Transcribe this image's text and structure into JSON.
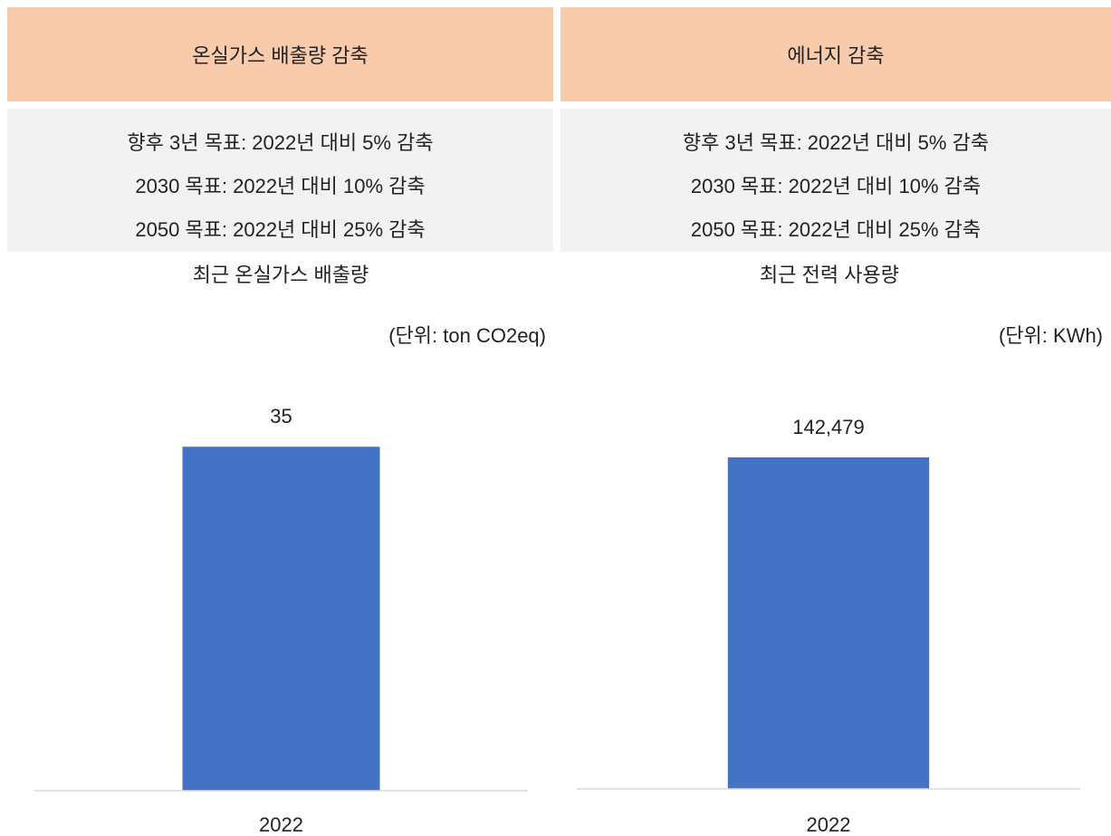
{
  "panels": [
    {
      "header": "온실가스 배출량 감축",
      "goals": [
        "향후 3년 목표: 2022년 대비 5% 감축",
        "2030 목표: 2022년 대비 10% 감축",
        "2050 목표: 2022년 대비 25% 감축"
      ]
    },
    {
      "header": "에너지 감축",
      "goals": [
        "향후 3년 목표: 2022년 대비 5% 감축",
        "2030 목표: 2022년 대비 10% 감축",
        "2050 목표: 2022년 대비 25% 감축"
      ]
    }
  ],
  "chart_data": [
    {
      "type": "bar",
      "title": "최근 온실가스 배출량",
      "subtitle": "(단위: ton CO2eq)",
      "categories": [
        "2022"
      ],
      "values": [
        35
      ],
      "color": "#4472c4",
      "ylim": [
        0,
        40
      ]
    },
    {
      "type": "bar",
      "title": "최근 전력 사용량",
      "subtitle": "(단위: KWh)",
      "categories": [
        "2022"
      ],
      "values": [
        142479
      ],
      "value_labels": [
        "142,479"
      ],
      "color": "#4472c4",
      "ylim": [
        0,
        160000
      ]
    }
  ]
}
